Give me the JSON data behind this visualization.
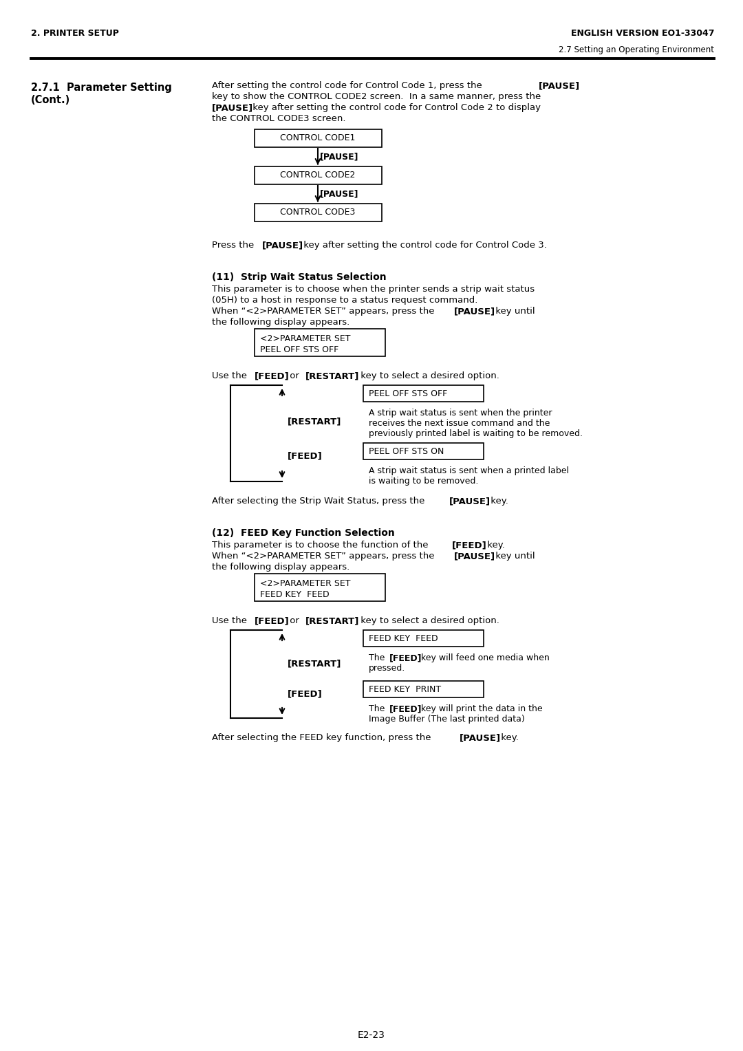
{
  "bg_color": "#ffffff",
  "header_left": "2. PRINTER SETUP",
  "header_right": "ENGLISH VERSION EO1-33047",
  "header_sub_right": "2.7 Setting an Operating Environment",
  "section_title_line1": "2.7.1  Parameter Setting",
  "section_title_line2": "(Cont.)",
  "page_number": "E2-23",
  "box1": "CONTROL CODE1",
  "arrow1": "↓[PAUSE]",
  "box2": "CONTROL CODE2",
  "arrow2": "↓[PAUSE]",
  "box3": "CONTROL CODE3",
  "section11_title": "(11)  Strip Wait Status Selection",
  "param_box11_line1": "<2>PARAMETER SET",
  "param_box11_line2": "PEEL OFF STS OFF",
  "opt11_box1": "PEEL OFF STS OFF",
  "opt11_box2": "PEEL OFF STS ON",
  "section12_title": "(12)  FEED Key Function Selection",
  "param_box12_line1": "<2>PARAMETER SET",
  "param_box12_line2": "FEED KEY  FEED",
  "opt12_box1": "FEED KEY  FEED",
  "opt12_box2": "FEED KEY  PRINT"
}
